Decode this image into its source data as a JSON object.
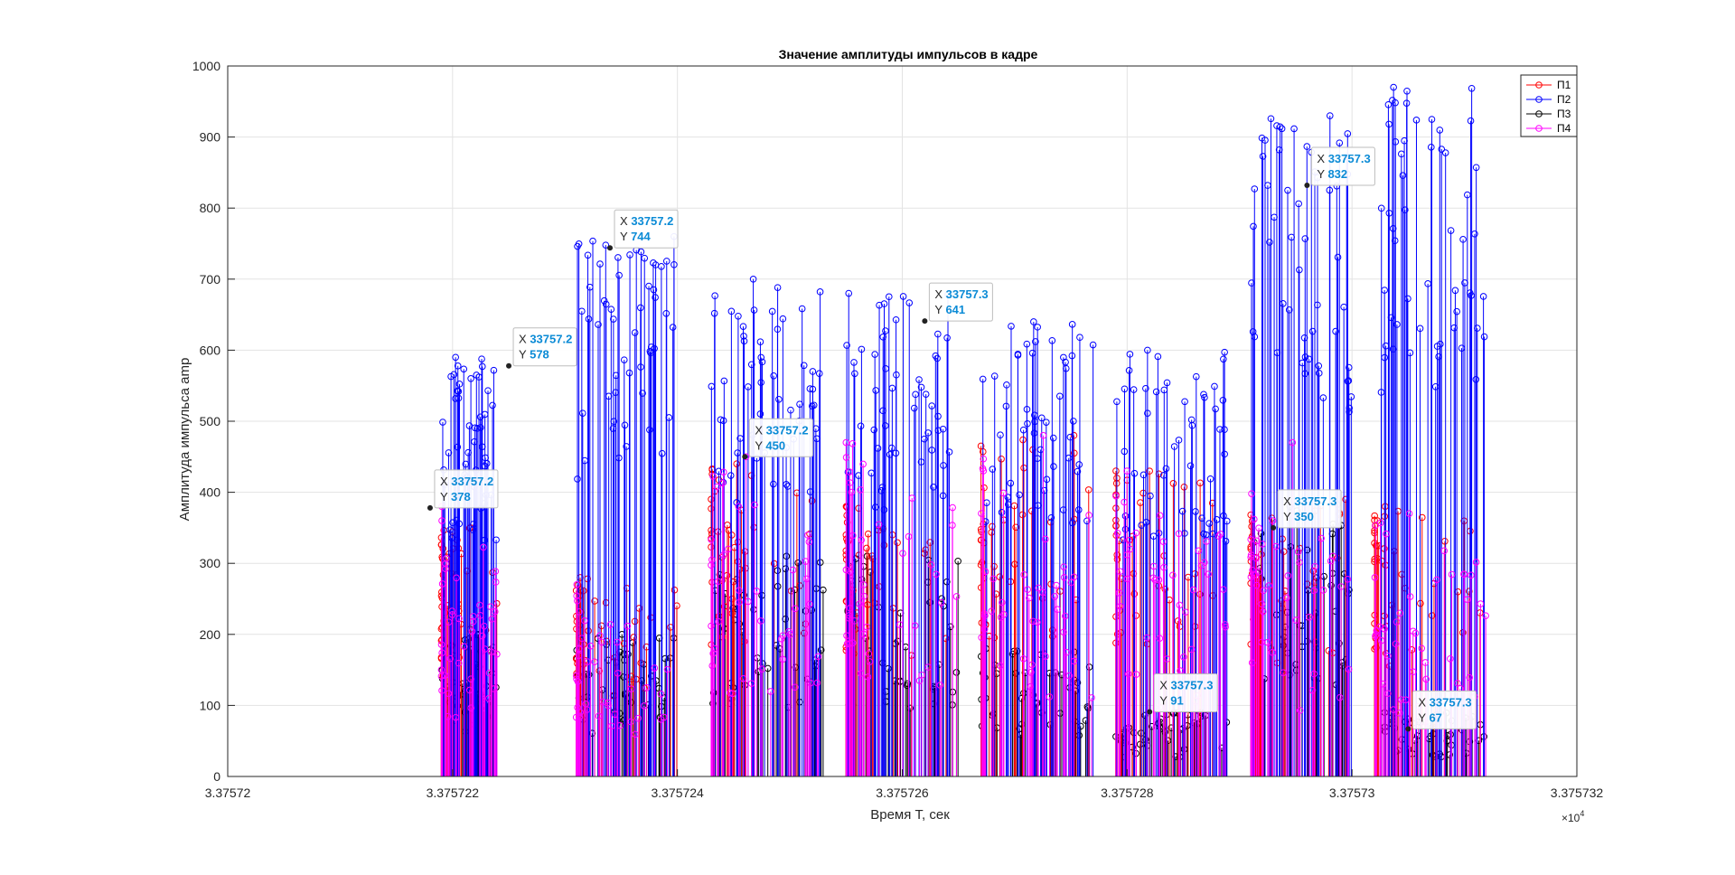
{
  "chart_data": {
    "type": "line",
    "title": "Значение амплитуды импульсов в кадре",
    "xlabel": "Время T, сек",
    "ylabel": "Амплитуда импульса amp",
    "x_exponent_label": "×10",
    "x_exponent_power": "4",
    "xlim": [
      3.37572,
      3.375732
    ],
    "ylim": [
      0,
      1000
    ],
    "x_ticks": [
      3.37572,
      3.375722,
      3.375724,
      3.375726,
      3.375728,
      3.37573,
      3.375732
    ],
    "x_tick_labels": [
      "3.37572",
      "3.375722",
      "3.375724",
      "3.375726",
      "3.375728",
      "3.37573",
      "3.375732"
    ],
    "y_ticks": [
      0,
      100,
      200,
      300,
      400,
      500,
      600,
      700,
      800,
      900,
      1000
    ],
    "y_tick_labels": [
      "0",
      "100",
      "200",
      "300",
      "400",
      "500",
      "600",
      "700",
      "800",
      "900",
      "1000"
    ],
    "grid": true,
    "legend_position": "top-right",
    "series": [
      {
        "name": "П1",
        "color": "#ff0000",
        "style": "stem-circle"
      },
      {
        "name": "П2",
        "color": "#0000ff",
        "style": "stem-circle"
      },
      {
        "name": "П3",
        "color": "#000000",
        "style": "stem-circle"
      },
      {
        "name": "П4",
        "color": "#ff00ff",
        "style": "stem-circle"
      }
    ],
    "bursts": [
      {
        "x_start": 3.3757219,
        "x_end": 3.3757224,
        "p1_max": 350,
        "p2_max": 590,
        "p3_max": 200,
        "p4_max": 380
      },
      {
        "x_start": 3.3757231,
        "x_end": 3.375724,
        "p1_max": 280,
        "p2_max": 760,
        "p3_max": 200,
        "p4_max": 270
      },
      {
        "x_start": 3.3757243,
        "x_end": 3.3757253,
        "p1_max": 440,
        "p2_max": 700,
        "p3_max": 310,
        "p4_max": 450
      },
      {
        "x_start": 3.3757255,
        "x_end": 3.3757265,
        "p1_max": 380,
        "p2_max": 680,
        "p3_max": 310,
        "p4_max": 470
      },
      {
        "x_start": 3.3757267,
        "x_end": 3.3757277,
        "p1_max": 480,
        "p2_max": 640,
        "p3_max": 180,
        "p4_max": 480
      },
      {
        "x_start": 3.3757279,
        "x_end": 3.3757289,
        "p1_max": 430,
        "p2_max": 600,
        "p3_max": 90,
        "p4_max": 430
      },
      {
        "x_start": 3.3757291,
        "x_end": 3.37573,
        "p1_max": 390,
        "p2_max": 930,
        "p3_max": 380,
        "p4_max": 470
      },
      {
        "x_start": 3.3757302,
        "x_end": 3.3757312,
        "p1_max": 380,
        "p2_max": 970,
        "p3_max": 90,
        "p4_max": 370
      }
    ],
    "datatips": [
      {
        "x": 3.3757218,
        "y": 378,
        "x_label": "33757.2",
        "y_label": "378"
      },
      {
        "x": 3.3757225,
        "y": 578,
        "x_label": "33757.2",
        "y_label": "578"
      },
      {
        "x": 3.3757234,
        "y": 744,
        "x_label": "33757.2",
        "y_label": "744"
      },
      {
        "x": 3.3757246,
        "y": 450,
        "x_label": "33757.2",
        "y_label": "450"
      },
      {
        "x": 3.3757262,
        "y": 641,
        "x_label": "33757.3",
        "y_label": "641"
      },
      {
        "x": 3.3757282,
        "y": 91,
        "x_label": "33757.3",
        "y_label": "91"
      },
      {
        "x": 3.3757293,
        "y": 350,
        "x_label": "33757.3",
        "y_label": "350"
      },
      {
        "x": 3.3757296,
        "y": 832,
        "x_label": "33757.3",
        "y_label": "832"
      },
      {
        "x": 3.3757305,
        "y": 67,
        "x_label": "33757.3",
        "y_label": "67"
      }
    ]
  }
}
